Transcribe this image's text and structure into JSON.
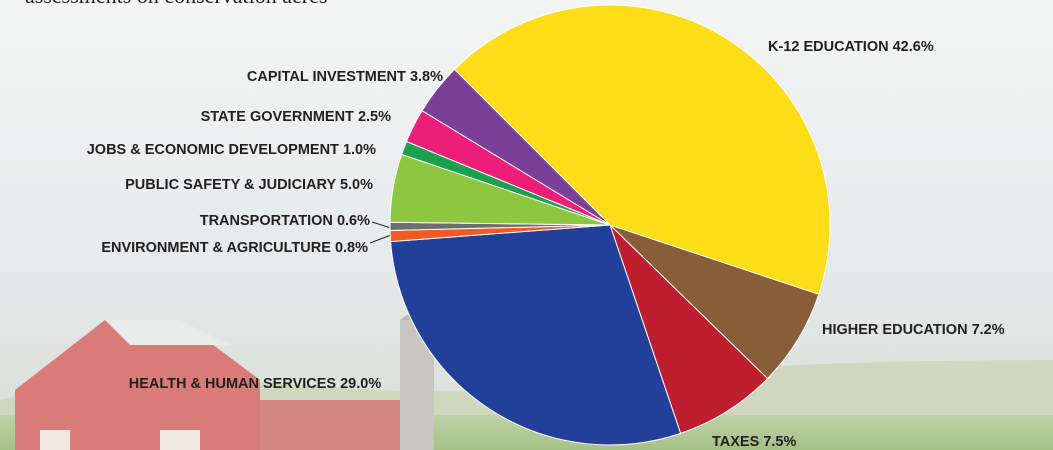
{
  "chart_data": {
    "type": "pie",
    "annotation": "assessments on conservation acres",
    "categories": [
      "K-12 EDUCATION",
      "HIGHER EDUCATION",
      "TAXES",
      "HEALTH & HUMAN SERVICES",
      "ENVIRONMENT & AGRICULTURE",
      "TRANSPORTATION",
      "PUBLIC SAFETY & JUDICIARY",
      "JOBS & ECONOMIC DEVELOPMENT",
      "STATE GOVERNMENT",
      "CAPITAL INVESTMENT"
    ],
    "values": [
      42.6,
      7.2,
      7.5,
      29.0,
      0.8,
      0.6,
      5.0,
      1.0,
      2.5,
      3.8
    ],
    "value_labels": [
      "42.6%",
      "7.2%",
      "7.5%",
      "29.0%",
      "0.8%",
      "0.6%",
      "5.0%",
      "1.0%",
      "2.5%",
      "3.8%"
    ],
    "colors": [
      "#fddc18",
      "#8a5d3a",
      "#be1e2d",
      "#22409a",
      "#f15a22",
      "#6d6e71",
      "#8dc63f",
      "#1ba14b",
      "#ec1e79",
      "#7b3f98"
    ]
  }
}
